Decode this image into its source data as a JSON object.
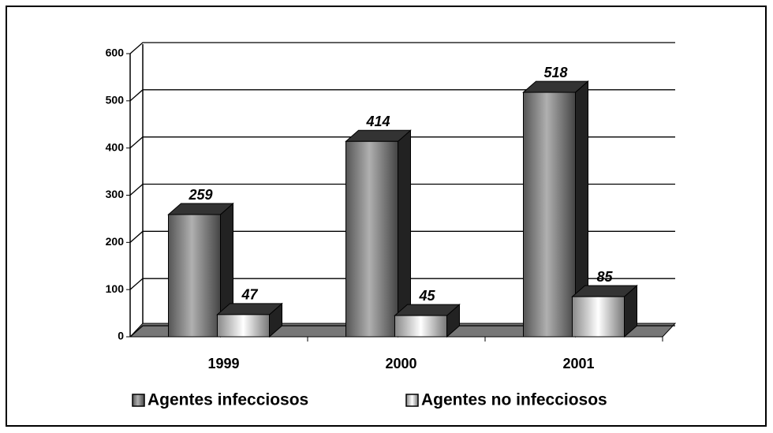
{
  "chart_data": {
    "type": "bar",
    "categories": [
      "1999",
      "2000",
      "2001"
    ],
    "series": [
      {
        "name": "Agentes infecciosos",
        "color": "#8c8c8c",
        "values": [
          259,
          414,
          518
        ]
      },
      {
        "name": "Agentes no infecciosos",
        "color": "#f2f2f2",
        "values": [
          47,
          45,
          85
        ]
      }
    ],
    "ylim": [
      0,
      600
    ],
    "yticks": [
      0,
      100,
      200,
      300,
      400,
      500,
      600
    ],
    "grid": true
  }
}
